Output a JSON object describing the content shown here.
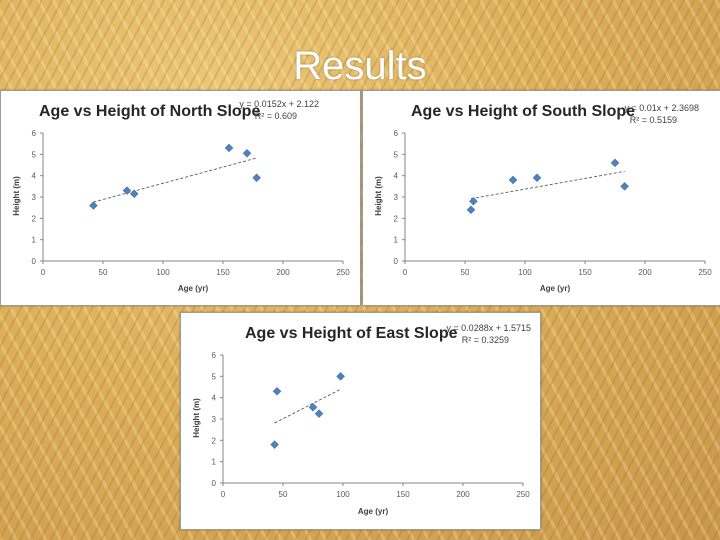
{
  "slide": {
    "title": "Results"
  },
  "chart_data": [
    {
      "type": "scatter",
      "title": "Age vs Height of North Slope",
      "xlabel": "Age (yr)",
      "ylabel": "Height (m)",
      "xlim": [
        0,
        250
      ],
      "ylim": [
        0,
        6
      ],
      "xticks": [
        0,
        50,
        100,
        150,
        200,
        250
      ],
      "yticks": [
        0,
        1,
        2,
        3,
        4,
        5,
        6
      ],
      "x": [
        42,
        70,
        76,
        155,
        170,
        178
      ],
      "y": [
        2.6,
        3.3,
        3.15,
        5.3,
        5.05,
        3.9
      ],
      "trendline": {
        "slope": 0.0152,
        "intercept": 2.122
      },
      "equation": "y = 0.0152x + 2.122",
      "r2": "R² = 0.609",
      "color": "#4f81bd"
    },
    {
      "type": "scatter",
      "title": "Age vs Height of South Slope",
      "xlabel": "Age (yr)",
      "ylabel": "Height (m)",
      "xlim": [
        0,
        250
      ],
      "ylim": [
        0,
        6
      ],
      "xticks": [
        0,
        50,
        100,
        150,
        200,
        250
      ],
      "yticks": [
        0,
        1,
        2,
        3,
        4,
        5,
        6
      ],
      "x": [
        55,
        57,
        90,
        110,
        175,
        183
      ],
      "y": [
        2.4,
        2.8,
        3.8,
        3.9,
        4.6,
        3.5
      ],
      "trendline": {
        "slope": 0.01,
        "intercept": 2.3698
      },
      "equation": "y = 0.01x + 2.3698",
      "r2": "R² = 0.5159",
      "color": "#4f81bd"
    },
    {
      "type": "scatter",
      "title": "Age vs Height of East Slope",
      "xlabel": "Age (yr)",
      "ylabel": "Height (m)",
      "xlim": [
        0,
        250
      ],
      "ylim": [
        0,
        6
      ],
      "xticks": [
        0,
        50,
        100,
        150,
        200,
        250
      ],
      "yticks": [
        0,
        1,
        2,
        3,
        4,
        5,
        6
      ],
      "x": [
        43,
        45,
        75,
        80,
        98
      ],
      "y": [
        1.8,
        4.3,
        3.55,
        3.25,
        5.0
      ],
      "trendline": {
        "slope": 0.0288,
        "intercept": 1.5715
      },
      "equation": "y = 0.0288x + 1.5715",
      "r2": "R² = 0.3259",
      "color": "#4f81bd"
    }
  ]
}
